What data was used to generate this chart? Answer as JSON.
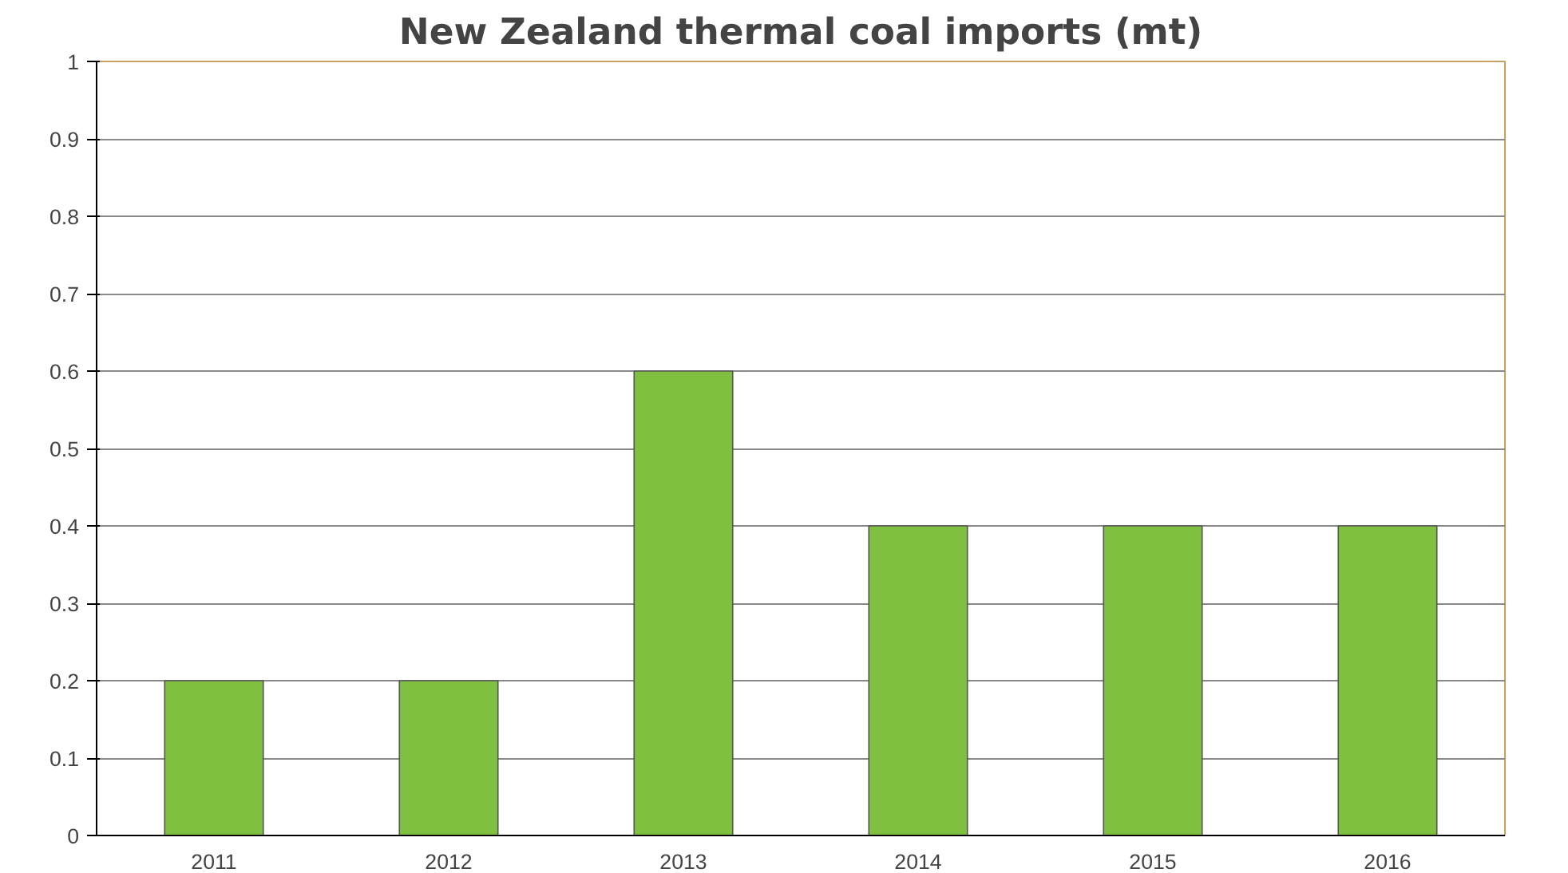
{
  "chart_data": {
    "type": "bar",
    "title": "New Zealand thermal coal imports (mt)",
    "categories": [
      "2011",
      "2012",
      "2013",
      "2014",
      "2015",
      "2016"
    ],
    "values": [
      0.2,
      0.2,
      0.6,
      0.4,
      0.4,
      0.4
    ],
    "color": "#80c041",
    "ylim": [
      0,
      1
    ],
    "yticks": [
      0,
      0.1,
      0.2,
      0.3,
      0.4,
      0.5,
      0.6,
      0.7,
      0.8,
      0.9,
      1
    ],
    "grid": "y"
  }
}
